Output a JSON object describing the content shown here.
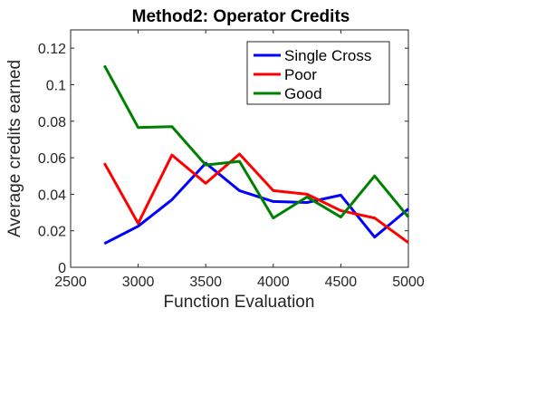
{
  "chart_data": {
    "type": "line",
    "title": "Method2: Operator Credits",
    "xlabel": "Function Evaluation",
    "ylabel": "Average credits earned",
    "xlim": [
      2500,
      5000
    ],
    "ylim": [
      0,
      0.13
    ],
    "xticks": [
      2500,
      3000,
      3500,
      4000,
      4500,
      5000
    ],
    "yticks": [
      0,
      0.02,
      0.04,
      0.06,
      0.08,
      0.1,
      0.12
    ],
    "ytick_labels": [
      "0",
      "0.02",
      "0.04",
      "0.06",
      "0.08",
      "0.1",
      "0.12"
    ],
    "grid": false,
    "legend_position": "top-right",
    "x": [
      2750,
      3000,
      3250,
      3500,
      3750,
      4000,
      4250,
      4500,
      4750,
      5000
    ],
    "series": [
      {
        "name": "Single Cross",
        "color": "#0000ff",
        "values": [
          0.013,
          0.0225,
          0.037,
          0.057,
          0.042,
          0.036,
          0.0355,
          0.0395,
          0.0165,
          0.032
        ]
      },
      {
        "name": "Poor",
        "color": "#ff0000",
        "values": [
          0.057,
          0.024,
          0.0615,
          0.046,
          0.062,
          0.042,
          0.04,
          0.031,
          0.027,
          0.0135
        ]
      },
      {
        "name": "Good",
        "color": "#008000",
        "values": [
          0.1105,
          0.0765,
          0.077,
          0.056,
          0.058,
          0.027,
          0.0385,
          0.0275,
          0.05,
          0.0275
        ]
      }
    ]
  }
}
